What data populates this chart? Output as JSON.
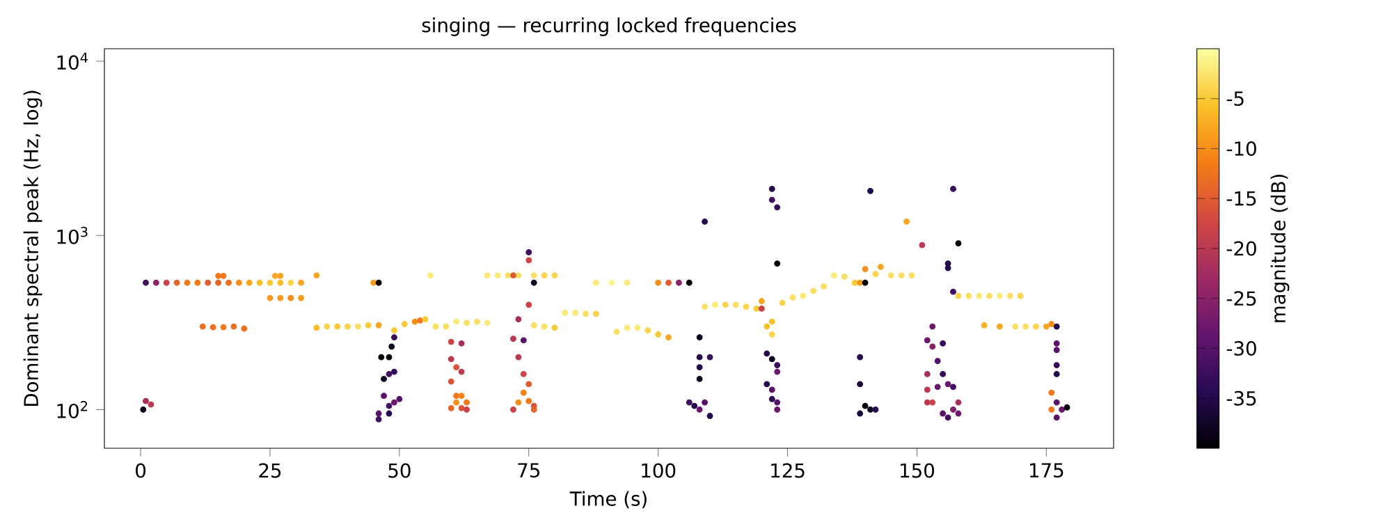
{
  "chart_data": {
    "type": "scatter",
    "title": "singing — recurring locked frequencies",
    "xlabel": "Time (s)",
    "ylabel": "Dominant spectral peak (Hz, log)",
    "clabel": "magnitude (dB)",
    "log": "y",
    "marker": "circle",
    "xlim": [
      -7,
      188
    ],
    "xticks": [
      0,
      25,
      50,
      75,
      100,
      125,
      150,
      175
    ],
    "ylim": [
      60,
      11800
    ],
    "yticks": [
      {
        "value": 100,
        "label": "10$^{2}$"
      },
      {
        "value": 1000,
        "label": "10$^{3}$"
      },
      {
        "value": 10000,
        "label": "10$^{4}$"
      }
    ],
    "clim": [
      -40,
      0
    ],
    "cticks": [
      -35,
      -30,
      -25,
      -20,
      -15,
      -10,
      -5
    ],
    "x": [
      1,
      3,
      5,
      7,
      9,
      11,
      13,
      15,
      17,
      19,
      21,
      23,
      25,
      27,
      29,
      31,
      15,
      16,
      26,
      27,
      34,
      25,
      27,
      29,
      31,
      12,
      14,
      16,
      18,
      20,
      34,
      36,
      38,
      40,
      42,
      44,
      46,
      45,
      46,
      0.5,
      1,
      2,
      46.5,
      48,
      48.5,
      49,
      47,
      48,
      49,
      47,
      48,
      49,
      50,
      46,
      46,
      48,
      49,
      51,
      53,
      54,
      55,
      57,
      59,
      61,
      63,
      65,
      67,
      56,
      60,
      62,
      60,
      61,
      62,
      60,
      61,
      62,
      63,
      60,
      61,
      62,
      63,
      67,
      69,
      71,
      73,
      72,
      76,
      78,
      80,
      75,
      75,
      76,
      75,
      73,
      74,
      72,
      73,
      74,
      75,
      74,
      73,
      75,
      76,
      72,
      76,
      76,
      78,
      80,
      82,
      84,
      86,
      88,
      88,
      91,
      94,
      92,
      94,
      96,
      98,
      100,
      102,
      100,
      102,
      104,
      106,
      109,
      108,
      108,
      110,
      108,
      108,
      106,
      107,
      108,
      109,
      110,
      109,
      111,
      113,
      115,
      117,
      119,
      120,
      122,
      122,
      123,
      123,
      120,
      121,
      122,
      122,
      121,
      122,
      123,
      123,
      121,
      122,
      122,
      123,
      123,
      124,
      126,
      128,
      130,
      132,
      134,
      136,
      138,
      139,
      140,
      141,
      140,
      139,
      139,
      140,
      141,
      139,
      142,
      142,
      143,
      145,
      147,
      149,
      148,
      151,
      157,
      158,
      156,
      156,
      157,
      153,
      152,
      153,
      155,
      154,
      152,
      155,
      156,
      157,
      152,
      154,
      152,
      153,
      155,
      157,
      158,
      156,
      158,
      158,
      160,
      162,
      164,
      166,
      168,
      170,
      163,
      166,
      169,
      171,
      173,
      175,
      176,
      177,
      177,
      177,
      177,
      177,
      176,
      176,
      177,
      178,
      179,
      177
    ],
    "values": [
      535,
      535,
      535,
      535,
      535,
      535,
      535,
      535,
      535,
      535,
      535,
      535,
      535,
      535,
      535,
      535,
      586,
      586,
      586,
      586,
      590,
      437,
      437,
      437,
      437,
      300,
      297,
      297,
      300,
      292,
      295,
      300,
      300,
      300,
      300,
      305,
      305,
      535,
      535,
      100,
      112,
      107,
      200,
      200,
      230,
      260,
      150,
      160,
      165,
      120,
      105,
      110,
      115,
      95,
      88,
      95,
      285,
      310,
      320,
      325,
      330,
      300,
      300,
      320,
      315,
      320,
      315,
      590,
      245,
      240,
      195,
      175,
      165,
      145,
      120,
      120,
      110,
      102,
      110,
      102,
      100,
      590,
      590,
      590,
      590,
      590,
      590,
      590,
      590,
      800,
      720,
      535,
      400,
      330,
      250,
      255,
      200,
      160,
      140,
      125,
      110,
      112,
      105,
      100,
      100,
      305,
      300,
      295,
      360,
      360,
      355,
      355,
      535,
      535,
      535,
      280,
      295,
      295,
      285,
      270,
      260,
      535,
      535,
      535,
      535,
      1200,
      260,
      200,
      200,
      175,
      150,
      110,
      105,
      100,
      110,
      92,
      390,
      400,
      400,
      400,
      390,
      380,
      380,
      1850,
      1600,
      1450,
      690,
      420,
      300,
      270,
      320,
      210,
      195,
      180,
      165,
      140,
      130,
      115,
      110,
      100,
      410,
      440,
      450,
      480,
      510,
      590,
      580,
      535,
      535,
      535,
      1800,
      640,
      200,
      140,
      105,
      100,
      95,
      100,
      600,
      660,
      590,
      590,
      590,
      1200,
      880,
      1850,
      900,
      690,
      650,
      475,
      300,
      250,
      230,
      240,
      190,
      160,
      160,
      140,
      135,
      130,
      135,
      110,
      110,
      95,
      100,
      110,
      90,
      95,
      450,
      450,
      450,
      450,
      450,
      450,
      450,
      305,
      300,
      300,
      300,
      300,
      300,
      310,
      300,
      240,
      220,
      180,
      160,
      125,
      100,
      110,
      100,
      103,
      90
    ],
    "cvalues": [
      -32,
      -25,
      -18,
      -14,
      -12,
      -12,
      -15,
      -14,
      -13,
      -10,
      -8,
      -6,
      -5,
      -6,
      -4,
      -8,
      -12,
      -12,
      -8,
      -8,
      -8,
      -9,
      -9,
      -10,
      -9,
      -13,
      -13,
      -12,
      -13,
      -13,
      -6,
      -4,
      -5,
      -4,
      -3,
      -5,
      -8,
      -9,
      -40,
      -38,
      -22,
      -20,
      -40,
      -40,
      -38,
      -33,
      -38,
      -32,
      -34,
      -30,
      -32,
      -28,
      -30,
      -30,
      -32,
      -35,
      -5,
      -5,
      -10,
      -12,
      -5,
      -3,
      -3,
      -2,
      -3,
      -3,
      -2,
      -2,
      -18,
      -22,
      -20,
      -16,
      -20,
      -16,
      -12,
      -11,
      -12,
      -14,
      -10,
      -16,
      -18,
      -2,
      -2,
      -3,
      -3,
      -15,
      -3,
      -4,
      -4,
      -32,
      -18,
      -38,
      -18,
      -22,
      -30,
      -20,
      -20,
      -18,
      -15,
      -11,
      -10,
      -12,
      -16,
      -18,
      -14,
      -3,
      -3,
      -5,
      -2,
      -2,
      -3,
      -4,
      -2,
      -1,
      -2,
      -3,
      -2,
      -2,
      -4,
      -5,
      -8,
      -10,
      -15,
      -25,
      -40,
      -35,
      -38,
      -35,
      -33,
      -35,
      -38,
      -32,
      -35,
      -28,
      -30,
      -35,
      -3,
      -2,
      -4,
      -3,
      -4,
      -5,
      -18,
      -35,
      -32,
      -33,
      -40,
      -8,
      -6,
      -4,
      -6,
      -35,
      -38,
      -33,
      -28,
      -35,
      -30,
      -34,
      -30,
      -28,
      -4,
      -3,
      -2,
      -3,
      -3,
      -2,
      -3,
      -5,
      -9,
      -40,
      -35,
      -10,
      -35,
      -36,
      -40,
      -38,
      -36,
      -34,
      -4,
      -8,
      -3,
      -3,
      -3,
      -8,
      -20,
      -33,
      -40,
      -35,
      -35,
      -32,
      -28,
      -28,
      -25,
      -33,
      -30,
      -22,
      -33,
      -28,
      -32,
      -20,
      -28,
      -20,
      -18,
      -30,
      -26,
      -22,
      -32,
      -28,
      -4,
      -3,
      -2,
      -3,
      -2,
      -3,
      -4,
      -7,
      -8,
      -3,
      -3,
      -4,
      -8,
      -10,
      -35,
      -30,
      -30,
      -33,
      -35,
      -12,
      -12,
      -30,
      -28,
      -40,
      -30
    ]
  }
}
